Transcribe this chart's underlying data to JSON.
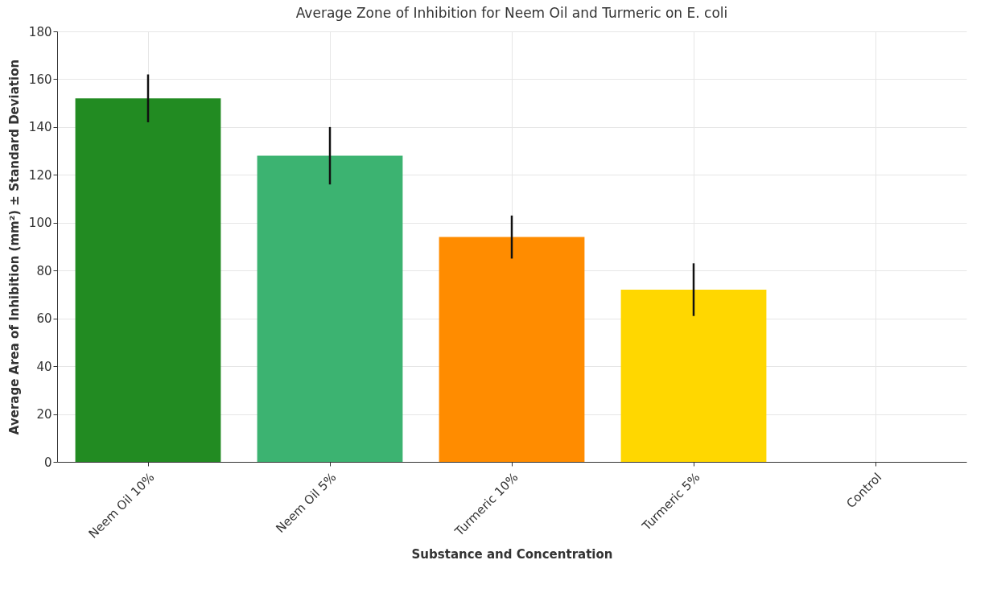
{
  "chart_data": {
    "type": "bar",
    "title": "Average Zone of Inhibition for Neem Oil and Turmeric on E. coli",
    "xlabel": "Substance and Concentration",
    "ylabel": "Average Area of Inhibition (mm²) ± Standard Deviation",
    "categories": [
      "Neem Oil 10%",
      "Neem Oil 5%",
      "Turmeric 10%",
      "Turmeric 5%",
      "Control"
    ],
    "values": [
      152,
      128,
      94,
      72,
      0
    ],
    "colors": [
      "#228b22",
      "#3cb371",
      "#ff8c00",
      "#ffd700",
      "#808080"
    ],
    "errors": [
      10,
      12,
      9,
      11,
      null
    ],
    "ylim": [
      0,
      180
    ],
    "yticks": [
      0,
      20,
      40,
      60,
      80,
      100,
      120,
      140,
      160,
      180
    ],
    "grid": true
  }
}
